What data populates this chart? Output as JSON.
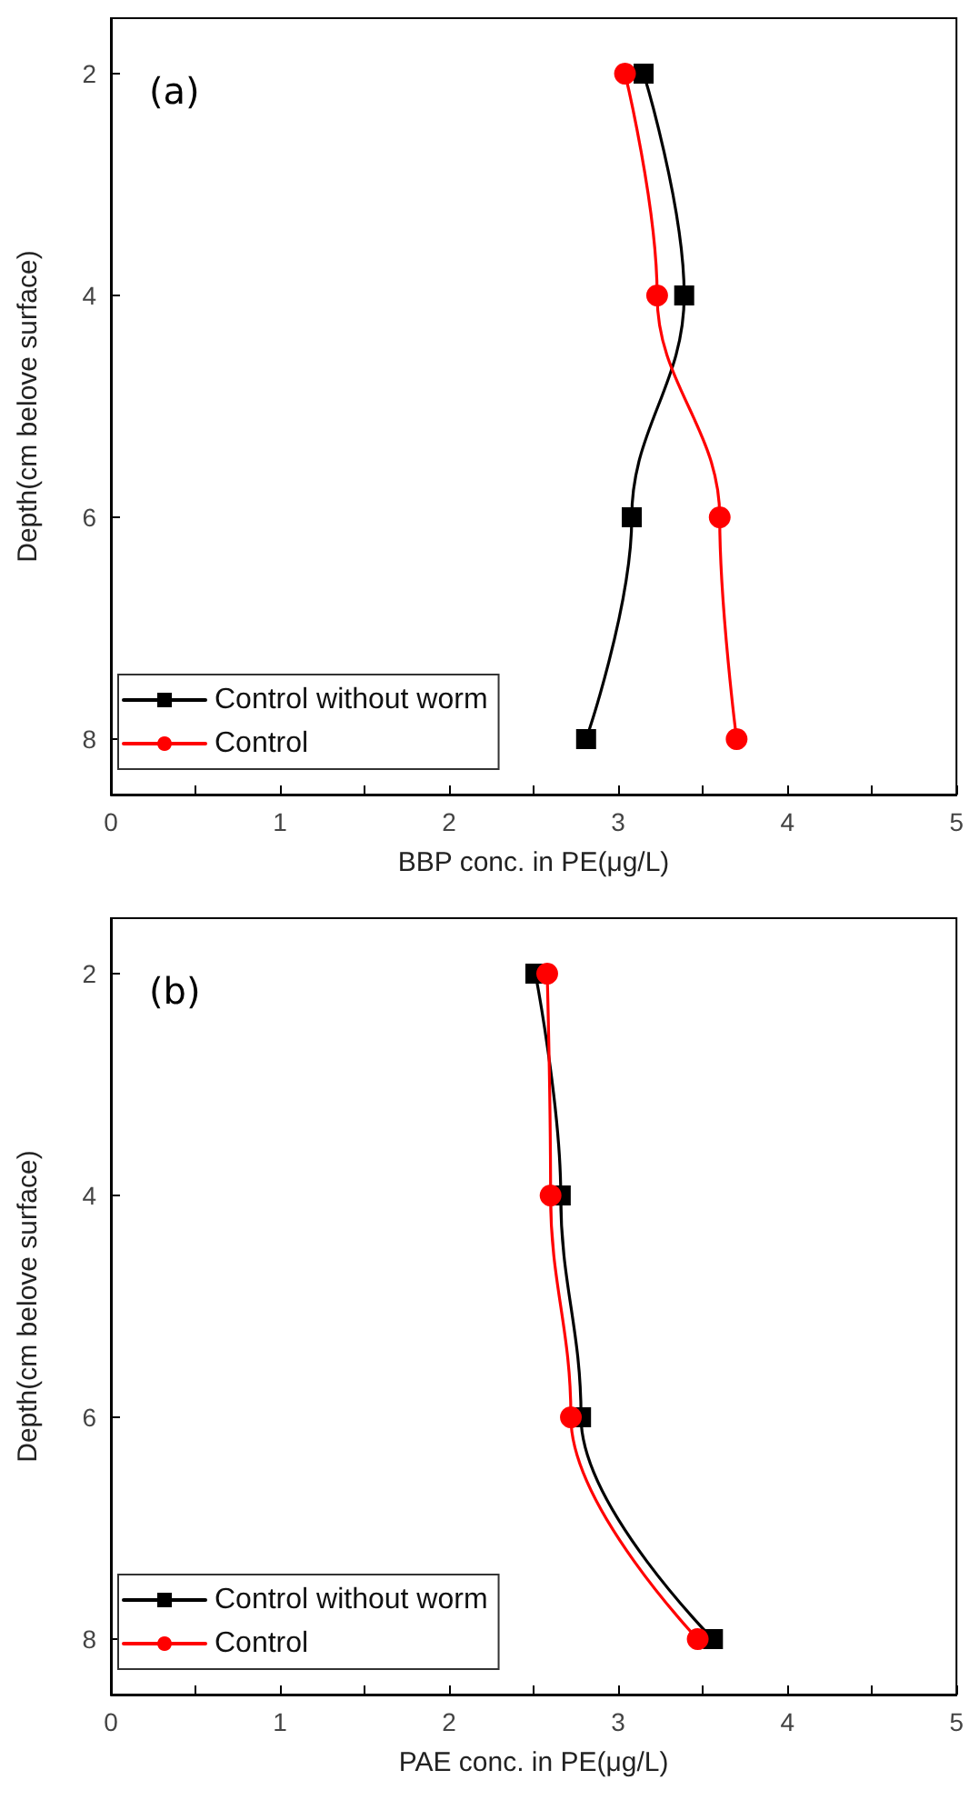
{
  "chart_data": [
    {
      "type": "line",
      "annotations": [
        "(a)"
      ],
      "xlabel": "BBP conc. in PE(μg/L)",
      "ylabel": "Depth(cm belove surface)",
      "xlim": [
        0,
        5
      ],
      "xticks": [
        0,
        {
          "value": 0.5,
          "label": null
        },
        1,
        {
          "value": 1.5,
          "label": null
        },
        2,
        {
          "value": 2.5,
          "label": null
        },
        3,
        {
          "value": 3.5,
          "label": null
        },
        4,
        {
          "value": 4.5,
          "label": null
        },
        5
      ],
      "ylim": [
        8.5,
        1.5
      ],
      "yticks": [
        2,
        4,
        6,
        8
      ],
      "grid": false,
      "legend": "bottom left",
      "line_style": "solid",
      "series": [
        {
          "name": "Control without worm",
          "color": "#000000",
          "marker": "square",
          "x": [
            3.15,
            3.39,
            3.08,
            2.81
          ],
          "values": [
            2,
            4,
            6,
            8
          ]
        },
        {
          "name": "Control",
          "color": "#ff0000",
          "marker": "circle",
          "x": [
            3.04,
            3.23,
            3.6,
            3.7
          ],
          "values": [
            2,
            4,
            6,
            8
          ]
        }
      ]
    },
    {
      "type": "line",
      "annotations": [
        "(b)"
      ],
      "xlabel": "PAE conc. in PE(μg/L)",
      "ylabel": "Depth(cm belove surface)",
      "xlim": [
        0,
        5
      ],
      "xticks": [
        0,
        {
          "value": 0.5,
          "label": null
        },
        1,
        {
          "value": 1.5,
          "label": null
        },
        2,
        {
          "value": 2.5,
          "label": null
        },
        3,
        {
          "value": 3.5,
          "label": null
        },
        4,
        {
          "value": 4.5,
          "label": null
        },
        5
      ],
      "ylim": [
        8.5,
        1.5
      ],
      "yticks": [
        2,
        4,
        6,
        8
      ],
      "grid": false,
      "legend": "bottom left",
      "line_style": "solid",
      "series": [
        {
          "name": "Control without worm",
          "color": "#000000",
          "marker": "square",
          "x": [
            2.51,
            2.66,
            2.78,
            3.56
          ],
          "values": [
            2,
            4,
            6,
            8
          ]
        },
        {
          "name": "Control",
          "color": "#ff0000",
          "marker": "circle",
          "x": [
            2.58,
            2.6,
            2.72,
            3.47
          ],
          "values": [
            2,
            4,
            6,
            8
          ]
        }
      ]
    }
  ]
}
